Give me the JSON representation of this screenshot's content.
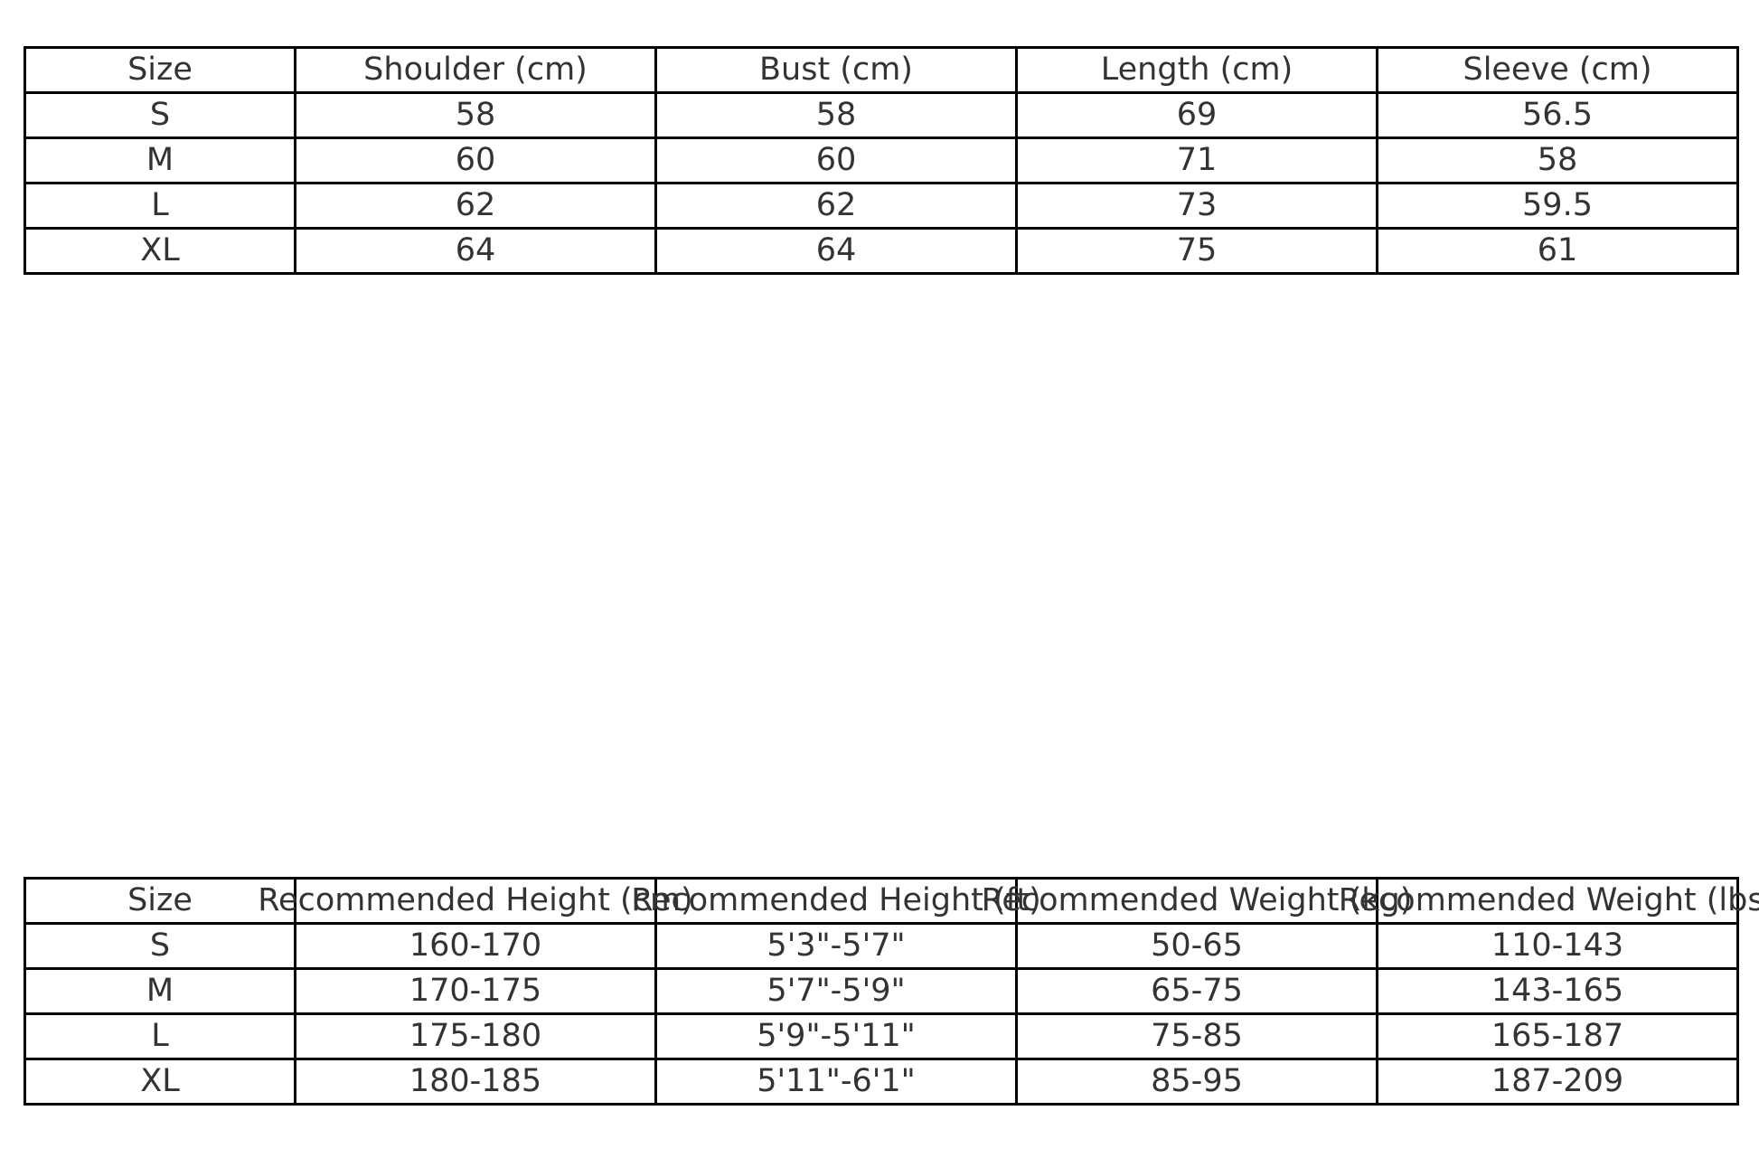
{
  "measurements_table": {
    "headers": [
      "Size",
      "Shoulder (cm)",
      "Bust (cm)",
      "Length (cm)",
      "Sleeve (cm)"
    ],
    "rows": [
      [
        "S",
        "58",
        "58",
        "69",
        "56.5"
      ],
      [
        "M",
        "60",
        "60",
        "71",
        "58"
      ],
      [
        "L",
        "62",
        "62",
        "73",
        "59.5"
      ],
      [
        "XL",
        "64",
        "64",
        "75",
        "61"
      ]
    ]
  },
  "recommendation_table": {
    "headers": [
      "Size",
      "Recommended Height (cm)",
      "Recommended Height (ft)",
      "Recommended Weight (kg)",
      "Recommended Weight (lbs)"
    ],
    "rows": [
      [
        "S",
        "160-170",
        "5'3\"-5'7\"",
        "50-65",
        "110-143"
      ],
      [
        "M",
        "170-175",
        "5'7\"-5'9\"",
        "65-75",
        "143-165"
      ],
      [
        "L",
        "175-180",
        "5'9\"-5'11\"",
        "75-85",
        "165-187"
      ],
      [
        "XL",
        "180-185",
        "5'11\"-6'1\"",
        "85-95",
        "187-209"
      ]
    ]
  }
}
